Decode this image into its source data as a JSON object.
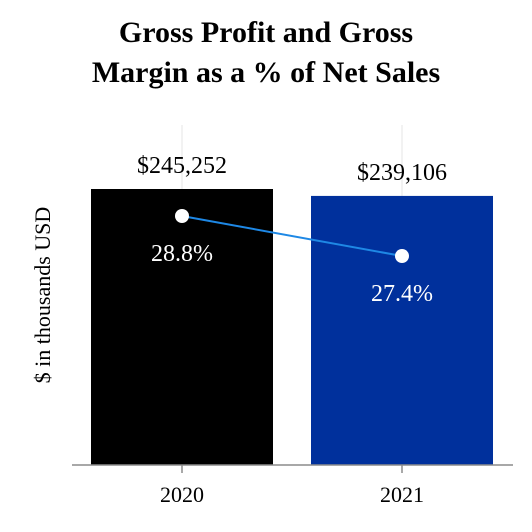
{
  "chart_data": {
    "type": "bar",
    "title_lines": [
      "Gross Profit and Gross",
      "Margin as a % of Net Sales"
    ],
    "ylabel": "$ in thousands USD",
    "categories": [
      "2020",
      "2021"
    ],
    "series": [
      {
        "values": [
          245252,
          239106
        ],
        "value_labels": [
          "$245,252",
          "$239,106"
        ],
        "colors": [
          "#000000",
          "#00309c"
        ]
      },
      {
        "type": "line",
        "values": [
          28.8,
          27.4
        ],
        "value_labels": [
          "28.8%",
          "27.4%"
        ],
        "color": "#1e88e5"
      }
    ],
    "grid": true
  }
}
